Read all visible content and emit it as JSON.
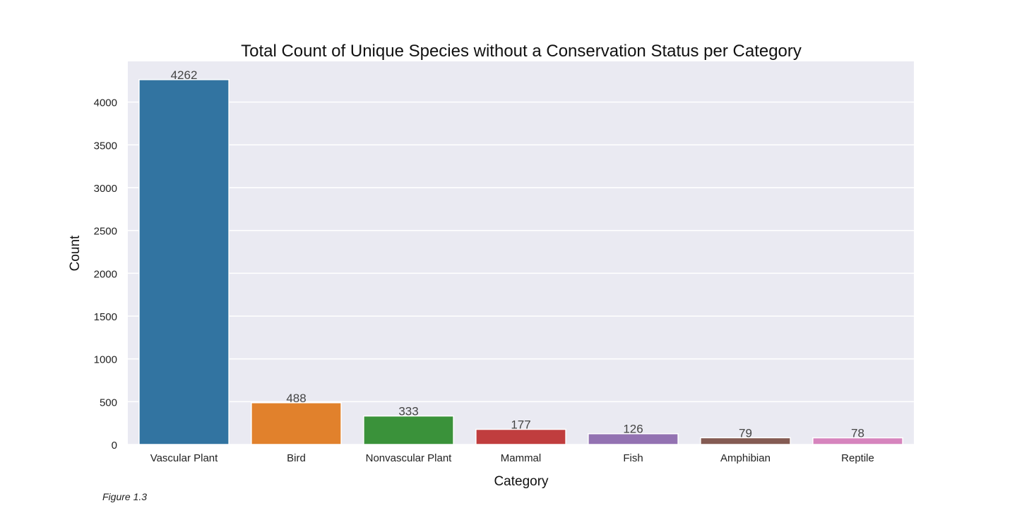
{
  "chart_data": {
    "type": "bar",
    "title": "Total Count of Unique Species without a Conservation Status per Category",
    "xlabel": "Category",
    "ylabel": "Count",
    "categories": [
      "Vascular Plant",
      "Bird",
      "Nonvascular Plant",
      "Mammal",
      "Fish",
      "Amphibian",
      "Reptile"
    ],
    "values": [
      4262,
      488,
      333,
      177,
      126,
      79,
      78
    ],
    "data_labels": [
      "4262",
      "488",
      "333",
      "177",
      "126",
      "79",
      "78"
    ],
    "colors": [
      "#3274a1",
      "#e1812c",
      "#3a923a",
      "#c03d3e",
      "#9372b2",
      "#845b53",
      "#d684bd"
    ],
    "yticks": [
      0,
      500,
      1000,
      1500,
      2000,
      2500,
      3000,
      3500,
      4000
    ],
    "ylim": [
      0,
      4475
    ],
    "grid": true,
    "legend": "none",
    "background_color": "#eaeaf2",
    "grid_color": "#ffffff"
  },
  "caption": "Figure 1.3"
}
